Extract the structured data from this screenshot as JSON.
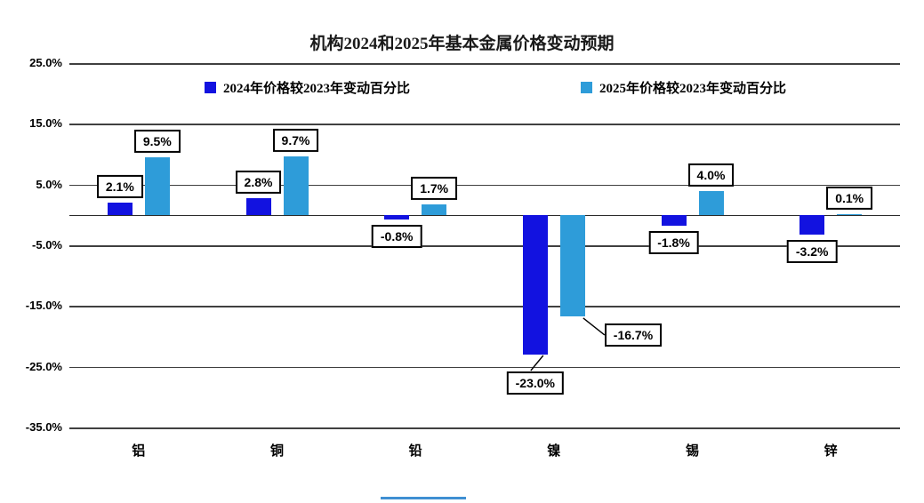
{
  "page": {
    "background": "#ffffff"
  },
  "chart_data": {
    "type": "bar",
    "title": "机构2024和2025年基本金属价格变动预期",
    "categories": [
      "铝",
      "铜",
      "铅",
      "镍",
      "锡",
      "锌"
    ],
    "series": [
      {
        "name": "2024年价格较2023年变动百分比",
        "color": "#1212E0",
        "values": [
          2.1,
          2.8,
          -0.8,
          -23.0,
          -1.8,
          -3.2
        ],
        "labels": [
          "2.1%",
          "2.8%",
          "-0.8%",
          "-23.0%",
          "-1.8%",
          "-3.2%"
        ],
        "callouts": [
          "above",
          "above",
          "below",
          "below-leader",
          "below",
          "below"
        ]
      },
      {
        "name": "2025年价格较2023年变动百分比",
        "color": "#2E9CD9",
        "values": [
          9.5,
          9.7,
          1.7,
          -16.7,
          4.0,
          0.1
        ],
        "labels": [
          "9.5%",
          "9.7%",
          "1.7%",
          "-16.7%",
          "4.0%",
          "0.1%"
        ],
        "callouts": [
          "above",
          "above",
          "above",
          "right-leader",
          "above",
          "above"
        ]
      }
    ],
    "ylim": [
      -35,
      25
    ],
    "yticks": [
      25,
      15,
      5,
      -5,
      -15,
      -25,
      -35
    ],
    "ytick_labels": [
      "25.0%",
      "15.0%",
      "5.0%",
      "-5.0%",
      "-15.0%",
      "-25.0%",
      "-35.0%"
    ],
    "xlabel": "",
    "ylabel": "",
    "grid": true,
    "legend_position": "top"
  }
}
